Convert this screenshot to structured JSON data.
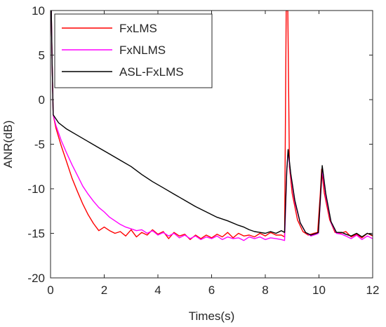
{
  "chart_data": {
    "type": "line",
    "title": "",
    "xlabel": "Times(s)",
    "ylabel": "ANR(dB)",
    "xlim": [
      0,
      12
    ],
    "ylim": [
      -20,
      10
    ],
    "xticks": [
      0,
      2,
      4,
      6,
      8,
      10,
      12
    ],
    "yticks": [
      -20,
      -15,
      -10,
      -5,
      0,
      5,
      10
    ],
    "grid": false,
    "legend_position": "top-left",
    "series": [
      {
        "name": "FxLMS",
        "color": "#ff0000",
        "points": [
          [
            0,
            10
          ],
          [
            0.03,
            10
          ],
          [
            0.06,
            4.0
          ],
          [
            0.1,
            -1.7
          ],
          [
            0.2,
            -3.2
          ],
          [
            0.4,
            -5.2
          ],
          [
            0.6,
            -7.0
          ],
          [
            0.8,
            -8.8
          ],
          [
            1.0,
            -10.3
          ],
          [
            1.2,
            -11.7
          ],
          [
            1.4,
            -12.9
          ],
          [
            1.6,
            -13.9
          ],
          [
            1.8,
            -14.7
          ],
          [
            2.0,
            -14.3
          ],
          [
            2.2,
            -14.7
          ],
          [
            2.4,
            -15.0
          ],
          [
            2.6,
            -14.8
          ],
          [
            2.8,
            -15.3
          ],
          [
            3.0,
            -14.6
          ],
          [
            3.2,
            -15.4
          ],
          [
            3.4,
            -14.9
          ],
          [
            3.6,
            -15.2
          ],
          [
            3.8,
            -14.6
          ],
          [
            4.0,
            -15.1
          ],
          [
            4.2,
            -14.8
          ],
          [
            4.4,
            -15.6
          ],
          [
            4.6,
            -14.9
          ],
          [
            4.8,
            -15.3
          ],
          [
            5.0,
            -15.1
          ],
          [
            5.2,
            -15.7
          ],
          [
            5.4,
            -15.2
          ],
          [
            5.6,
            -15.6
          ],
          [
            5.8,
            -15.2
          ],
          [
            6.0,
            -15.5
          ],
          [
            6.2,
            -15.1
          ],
          [
            6.4,
            -15.4
          ],
          [
            6.6,
            -14.9
          ],
          [
            6.8,
            -15.5
          ],
          [
            7.0,
            -15.0
          ],
          [
            7.2,
            -15.3
          ],
          [
            7.4,
            -15.2
          ],
          [
            7.6,
            -15.4
          ],
          [
            7.8,
            -15.0
          ],
          [
            8.0,
            -15.3
          ],
          [
            8.2,
            -14.9
          ],
          [
            8.4,
            -15.2
          ],
          [
            8.6,
            -15.2
          ],
          [
            8.72,
            -15.4
          ],
          [
            8.78,
            10.0
          ],
          [
            8.84,
            10.0
          ],
          [
            8.9,
            -7.5
          ],
          [
            9.0,
            -10.5
          ],
          [
            9.2,
            -13.5
          ],
          [
            9.4,
            -14.8
          ],
          [
            9.6,
            -15.2
          ],
          [
            9.8,
            -15.0
          ],
          [
            9.95,
            -14.9
          ],
          [
            10.05,
            -10.5
          ],
          [
            10.1,
            -7.8
          ],
          [
            10.2,
            -10.5
          ],
          [
            10.4,
            -13.5
          ],
          [
            10.6,
            -14.9
          ],
          [
            10.8,
            -15.0
          ],
          [
            11.0,
            -14.8
          ],
          [
            11.2,
            -15.4
          ],
          [
            11.4,
            -15.1
          ],
          [
            11.6,
            -15.5
          ],
          [
            11.8,
            -15.0
          ],
          [
            12.0,
            -15.3
          ]
        ]
      },
      {
        "name": "FxNLMS",
        "color": "#ff00ff",
        "points": [
          [
            0,
            10
          ],
          [
            0.03,
            10
          ],
          [
            0.06,
            4.0
          ],
          [
            0.1,
            -1.7
          ],
          [
            0.2,
            -2.9
          ],
          [
            0.4,
            -4.6
          ],
          [
            0.6,
            -6.0
          ],
          [
            0.8,
            -7.3
          ],
          [
            1.0,
            -8.5
          ],
          [
            1.2,
            -9.7
          ],
          [
            1.4,
            -10.6
          ],
          [
            1.6,
            -11.4
          ],
          [
            1.8,
            -12.1
          ],
          [
            2.0,
            -12.6
          ],
          [
            2.2,
            -13.2
          ],
          [
            2.4,
            -13.6
          ],
          [
            2.6,
            -14.0
          ],
          [
            2.8,
            -14.3
          ],
          [
            3.0,
            -14.5
          ],
          [
            3.2,
            -14.7
          ],
          [
            3.4,
            -14.6
          ],
          [
            3.6,
            -15.0
          ],
          [
            3.8,
            -14.7
          ],
          [
            4.0,
            -15.2
          ],
          [
            4.2,
            -14.9
          ],
          [
            4.4,
            -15.3
          ],
          [
            4.6,
            -15.0
          ],
          [
            4.8,
            -15.5
          ],
          [
            5.0,
            -15.2
          ],
          [
            5.2,
            -15.6
          ],
          [
            5.4,
            -15.3
          ],
          [
            5.6,
            -15.7
          ],
          [
            5.8,
            -15.4
          ],
          [
            6.0,
            -15.6
          ],
          [
            6.2,
            -15.3
          ],
          [
            6.4,
            -15.7
          ],
          [
            6.6,
            -15.4
          ],
          [
            6.8,
            -15.6
          ],
          [
            7.0,
            -15.5
          ],
          [
            7.2,
            -15.8
          ],
          [
            7.4,
            -15.4
          ],
          [
            7.6,
            -15.6
          ],
          [
            7.8,
            -15.4
          ],
          [
            8.0,
            -15.7
          ],
          [
            8.2,
            -15.5
          ],
          [
            8.4,
            -15.6
          ],
          [
            8.6,
            -15.7
          ],
          [
            8.72,
            -15.8
          ],
          [
            8.8,
            -8.0
          ],
          [
            8.85,
            -5.8
          ],
          [
            8.95,
            -8.5
          ],
          [
            9.1,
            -11.5
          ],
          [
            9.3,
            -13.8
          ],
          [
            9.5,
            -14.9
          ],
          [
            9.7,
            -15.3
          ],
          [
            9.9,
            -15.1
          ],
          [
            9.98,
            -15.0
          ],
          [
            10.08,
            -9.8
          ],
          [
            10.12,
            -7.8
          ],
          [
            10.25,
            -10.8
          ],
          [
            10.45,
            -13.8
          ],
          [
            10.65,
            -15.0
          ],
          [
            10.85,
            -15.1
          ],
          [
            11.0,
            -15.3
          ],
          [
            11.2,
            -15.6
          ],
          [
            11.4,
            -15.2
          ],
          [
            11.6,
            -15.7
          ],
          [
            11.8,
            -15.3
          ],
          [
            12.0,
            -15.6
          ]
        ]
      },
      {
        "name": "ASL-FxLMS",
        "color": "#000000",
        "points": [
          [
            0,
            10
          ],
          [
            0.03,
            10
          ],
          [
            0.06,
            4.0
          ],
          [
            0.1,
            -1.7
          ],
          [
            0.3,
            -2.6
          ],
          [
            0.6,
            -3.3
          ],
          [
            1.0,
            -4.0
          ],
          [
            1.4,
            -4.7
          ],
          [
            1.8,
            -5.4
          ],
          [
            2.2,
            -6.1
          ],
          [
            2.6,
            -6.8
          ],
          [
            3.0,
            -7.5
          ],
          [
            3.4,
            -8.4
          ],
          [
            3.8,
            -9.2
          ],
          [
            4.2,
            -9.9
          ],
          [
            4.6,
            -10.6
          ],
          [
            5.0,
            -11.3
          ],
          [
            5.4,
            -12.0
          ],
          [
            5.8,
            -12.6
          ],
          [
            6.2,
            -13.2
          ],
          [
            6.6,
            -13.6
          ],
          [
            7.0,
            -14.1
          ],
          [
            7.2,
            -14.3
          ],
          [
            7.4,
            -14.6
          ],
          [
            7.6,
            -14.8
          ],
          [
            7.8,
            -14.9
          ],
          [
            8.0,
            -15.0
          ],
          [
            8.2,
            -14.8
          ],
          [
            8.4,
            -15.0
          ],
          [
            8.6,
            -14.7
          ],
          [
            8.72,
            -14.9
          ],
          [
            8.8,
            -8.0
          ],
          [
            8.85,
            -5.6
          ],
          [
            8.95,
            -8.3
          ],
          [
            9.1,
            -11.3
          ],
          [
            9.3,
            -13.8
          ],
          [
            9.5,
            -14.9
          ],
          [
            9.7,
            -15.2
          ],
          [
            9.9,
            -15.0
          ],
          [
            9.98,
            -14.9
          ],
          [
            10.08,
            -9.6
          ],
          [
            10.12,
            -7.4
          ],
          [
            10.25,
            -10.5
          ],
          [
            10.45,
            -13.7
          ],
          [
            10.65,
            -14.9
          ],
          [
            10.85,
            -14.9
          ],
          [
            11.0,
            -15.1
          ],
          [
            11.2,
            -15.3
          ],
          [
            11.4,
            -15.0
          ],
          [
            11.6,
            -15.4
          ],
          [
            11.8,
            -15.0
          ],
          [
            12.0,
            -15.2
          ]
        ]
      }
    ]
  }
}
